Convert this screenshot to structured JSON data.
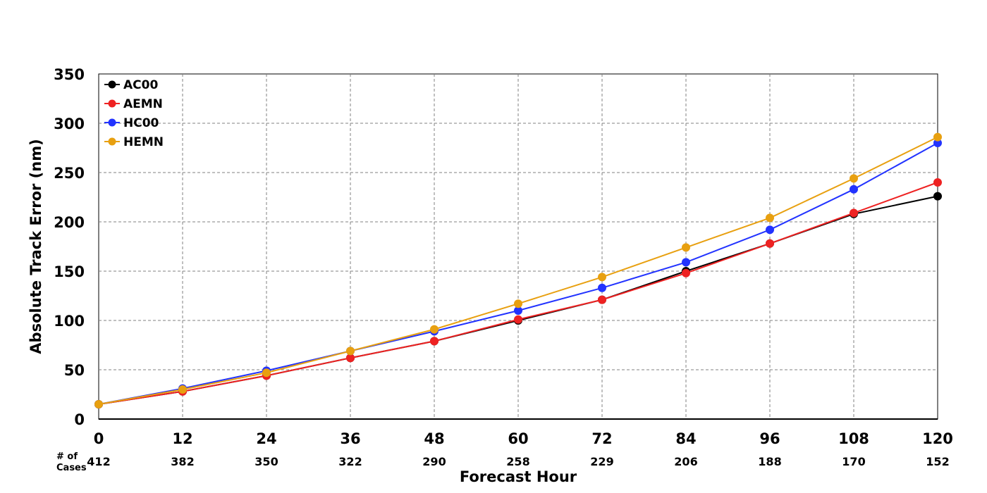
{
  "chart_data": {
    "type": "line",
    "xlabel": "Forecast Hour",
    "ylabel": "Absolute Track Error (nm)",
    "x": [
      0,
      12,
      24,
      36,
      48,
      60,
      72,
      84,
      96,
      108,
      120
    ],
    "xlim": [
      0,
      120
    ],
    "ylim": [
      0,
      350
    ],
    "yticks": [
      0,
      50,
      100,
      150,
      200,
      250,
      300,
      350
    ],
    "grid": true,
    "legend_position": "top-left",
    "cases_header": [
      "# of",
      "Cases"
    ],
    "cases": [
      "412",
      "382",
      "350",
      "322",
      "290",
      "258",
      "229",
      "206",
      "188",
      "170",
      "152"
    ],
    "series": [
      {
        "name": "AC00",
        "color": "#000000",
        "values": [
          15,
          28,
          44,
          62,
          79,
          100,
          121,
          150,
          178,
          208,
          226
        ]
      },
      {
        "name": "AEMN",
        "color": "#ee2222",
        "values": [
          15,
          28,
          44,
          62,
          79,
          101,
          121,
          148,
          178,
          209,
          240
        ]
      },
      {
        "name": "HC00",
        "color": "#2233ff",
        "values": [
          15,
          31,
          49,
          69,
          89,
          110,
          133,
          159,
          192,
          233,
          280
        ]
      },
      {
        "name": "HEMN",
        "color": "#e8a010",
        "values": [
          15,
          30,
          47,
          69,
          91,
          117,
          144,
          174,
          204,
          244,
          286
        ]
      }
    ]
  }
}
